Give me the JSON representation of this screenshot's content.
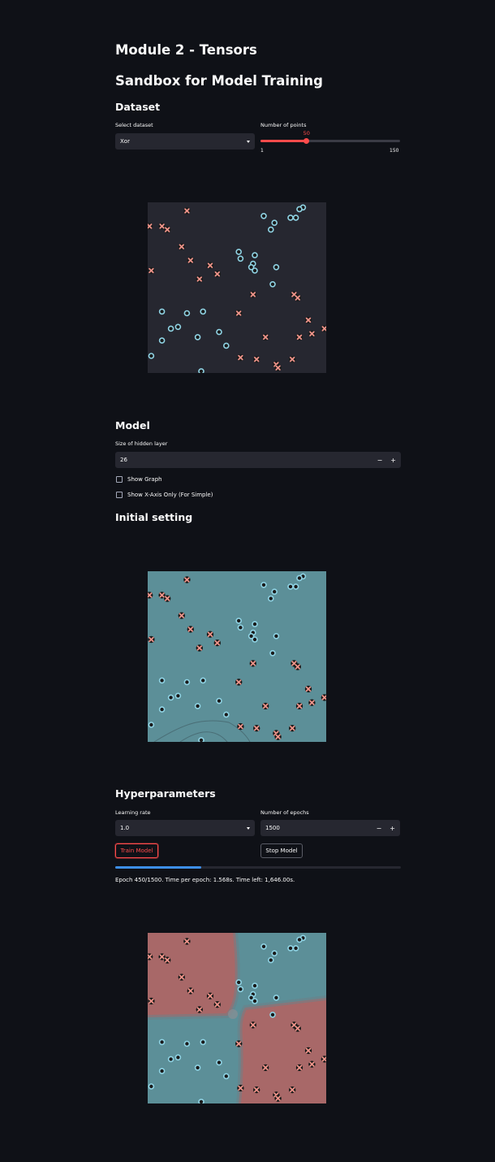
{
  "page": {
    "title": "Module 2 - Tensors",
    "subtitle": "Sandbox for Model Training"
  },
  "dataset": {
    "header": "Dataset",
    "select_label": "Select dataset",
    "select_value": "Xor",
    "points_label": "Number of points",
    "points_value": "50",
    "points_min": "1",
    "points_max": "150",
    "points_fraction": 0.33
  },
  "model": {
    "header": "Model",
    "hidden_label": "Size of hidden layer",
    "hidden_value": "26",
    "minus": "−",
    "plus": "+",
    "show_graph_label": "Show Graph",
    "show_xaxis_label": "Show X-Axis Only (For Simple)"
  },
  "initial": {
    "header": "Initial setting"
  },
  "hyper": {
    "header": "Hyperparameters",
    "lr_label": "Learning rate",
    "lr_value": "1.0",
    "epochs_label": "Number of epochs",
    "epochs_value": "1500",
    "train_label": "Train Model",
    "stop_label": "Stop Model",
    "progress_fraction": 0.3,
    "status": "Epoch 450/1500. Time per epoch: 1.568s. Time left: 1,646.00s."
  },
  "colors": {
    "accent": "#ff4b4b",
    "progress": "#3d8ee8",
    "class_x": "#f0948a",
    "class_o": "#8fd3e4",
    "plot_bg_dark": "#262730",
    "region_blue": "#5c8f98",
    "region_red": "#a86868"
  },
  "icons": {
    "dropdown": "chevron-down-icon",
    "x_marker": "x-marker-icon",
    "o_marker": "circle-marker-icon"
  },
  "chart_data": [
    {
      "type": "scatter",
      "xlim": [
        0,
        1
      ],
      "ylim": [
        0,
        1
      ],
      "series": [
        {
          "values": [
            [
              0.22,
              0.95
            ],
            [
              0.01,
              0.86
            ],
            [
              0.08,
              0.86
            ],
            [
              0.11,
              0.84
            ],
            [
              0.19,
              0.74
            ],
            [
              0.24,
              0.66
            ],
            [
              0.35,
              0.63
            ],
            [
              0.39,
              0.58
            ],
            [
              0.29,
              0.55
            ],
            [
              0.02,
              0.6
            ],
            [
              0.59,
              0.46
            ],
            [
              0.82,
              0.46
            ],
            [
              0.84,
              0.44
            ],
            [
              0.51,
              0.35
            ],
            [
              0.9,
              0.31
            ],
            [
              0.99,
              0.26
            ],
            [
              0.92,
              0.23
            ],
            [
              0.66,
              0.21
            ],
            [
              0.85,
              0.21
            ],
            [
              0.52,
              0.09
            ],
            [
              0.61,
              0.08
            ],
            [
              0.81,
              0.08
            ],
            [
              0.72,
              0.05
            ],
            [
              0.73,
              0.03
            ]
          ]
        },
        {
          "values": [
            [
              0.87,
              0.97
            ],
            [
              0.85,
              0.96
            ],
            [
              0.65,
              0.92
            ],
            [
              0.83,
              0.91
            ],
            [
              0.8,
              0.91
            ],
            [
              0.71,
              0.88
            ],
            [
              0.69,
              0.84
            ],
            [
              0.51,
              0.71
            ],
            [
              0.6,
              0.69
            ],
            [
              0.52,
              0.67
            ],
            [
              0.59,
              0.64
            ],
            [
              0.58,
              0.62
            ],
            [
              0.6,
              0.6
            ],
            [
              0.72,
              0.62
            ],
            [
              0.7,
              0.52
            ],
            [
              0.08,
              0.36
            ],
            [
              0.22,
              0.35
            ],
            [
              0.31,
              0.36
            ],
            [
              0.17,
              0.27
            ],
            [
              0.13,
              0.26
            ],
            [
              0.08,
              0.19
            ],
            [
              0.4,
              0.24
            ],
            [
              0.28,
              0.21
            ],
            [
              0.44,
              0.16
            ],
            [
              0.02,
              0.1
            ],
            [
              0.3,
              0.01
            ]
          ]
        }
      ]
    }
  ]
}
